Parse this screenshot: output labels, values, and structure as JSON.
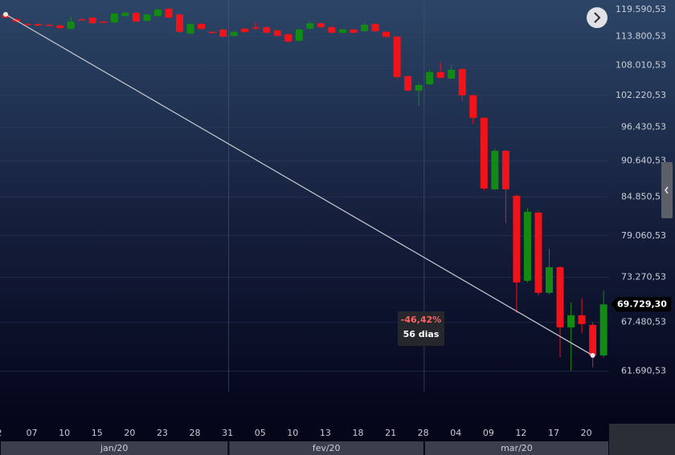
{
  "chart_data": {
    "type": "candlestick",
    "log_scale": true,
    "grid": true,
    "up_color": "#138a13",
    "down_color": "#f0131a",
    "categories": [
      "2",
      null,
      null,
      "07",
      null,
      null,
      "10",
      null,
      null,
      "15",
      null,
      null,
      "20",
      null,
      null,
      "23",
      null,
      null,
      "28",
      null,
      null,
      "31",
      null,
      null,
      "05",
      null,
      null,
      "10",
      null,
      null,
      "13",
      null,
      null,
      "18",
      null,
      null,
      "21",
      null,
      null,
      "28",
      null,
      null,
      "04",
      null,
      null,
      "09",
      null,
      null,
      "12",
      null,
      null,
      "17",
      null,
      null,
      "20",
      null
    ],
    "open": [
      118540,
      117500,
      116480,
      116480,
      116310,
      116140,
      115460,
      117500,
      117850,
      116990,
      116820,
      118190,
      118890,
      117160,
      118190,
      119766,
      118540,
      114460,
      116480,
      114800,
      115300,
      113970,
      115460,
      115800,
      115800,
      115130,
      114300,
      112970,
      115460,
      116650,
      115800,
      114630,
      115300,
      114960,
      116480,
      114800,
      113800,
      105870,
      103110,
      104320,
      106650,
      105410,
      107270,
      102220,
      98090,
      86070,
      92360,
      85060,
      72810,
      82480,
      71220,
      74640,
      66860,
      68350,
      67160,
      63510
    ],
    "high": [
      118700,
      117700,
      116700,
      116650,
      116480,
      116310,
      118020,
      117680,
      118020,
      117160,
      118890,
      119070,
      119070,
      118716,
      119766,
      119940,
      118716,
      116650,
      116650,
      114970,
      115460,
      114970,
      115630,
      116820,
      115970,
      115300,
      114460,
      115460,
      117160,
      116820,
      115970,
      115460,
      115460,
      116820,
      116650,
      114970,
      113970,
      106040,
      104560,
      107120,
      108540,
      108010,
      107420,
      102380,
      98250,
      92700,
      92530,
      85230,
      83200,
      82650,
      77210,
      74810,
      69970,
      70490,
      67500,
      71530
    ],
    "low": [
      117700,
      116800,
      116300,
      115950,
      116140,
      115460,
      115300,
      117330,
      116480,
      116820,
      116650,
      118020,
      116820,
      116990,
      118020,
      117680,
      114630,
      114300,
      115300,
      114630,
      113640,
      113800,
      114630,
      115130,
      114460,
      113800,
      112630,
      112800,
      115300,
      115630,
      114460,
      114460,
      114460,
      114800,
      114800,
      113640,
      105410,
      102940,
      100260,
      104170,
      105410,
      105260,
      101180,
      97000,
      85900,
      85900,
      80930,
      68640,
      72600,
      70900,
      71000,
      63320,
      61770,
      66170,
      62130,
      63300
    ],
    "close": [
      117850,
      116990,
      116450,
      116140,
      116300,
      115630,
      116990,
      117480,
      116650,
      116970,
      118716,
      118890,
      116990,
      118540,
      119590,
      117850,
      114800,
      116480,
      115460,
      114780,
      113800,
      114800,
      114800,
      115780,
      114630,
      113970,
      112800,
      115300,
      116650,
      115800,
      114630,
      115300,
      114630,
      116310,
      114960,
      113800,
      105720,
      103110,
      104170,
      106650,
      105570,
      107120,
      102220,
      98090,
      86190,
      92360,
      86070,
      72590,
      82600,
      71220,
      74640,
      66860,
      68350,
      67260,
      63510,
      69729.3
    ],
    "ylim": [
      56300,
      121700
    ],
    "yticks": [
      {
        "value": 119590.53,
        "label": "119.590,53"
      },
      {
        "value": 113800.53,
        "label": "113.800,53"
      },
      {
        "value": 108010.53,
        "label": "108.010,53"
      },
      {
        "value": 102220.53,
        "label": "102.220,53"
      },
      {
        "value": 96430.53,
        "label": "96.430,53"
      },
      {
        "value": 90640.53,
        "label": "90.640,53"
      },
      {
        "value": 84850.53,
        "label": "84.850,53"
      },
      {
        "value": 79060.53,
        "label": "79.060,53"
      },
      {
        "value": 73270.53,
        "label": "73.270,53"
      },
      {
        "value": 67480.53,
        "label": "67.480,53"
      },
      {
        "value": 61690.53,
        "label": "61.690,53"
      }
    ],
    "last_price": {
      "value": 69729.3,
      "label": "69.729,30"
    },
    "months": [
      {
        "label": "jan/20",
        "start": 0
      },
      {
        "label": "fev/20",
        "start": 21
      },
      {
        "label": "mar/20",
        "start": 39
      }
    ],
    "measure": {
      "start": {
        "index": 0,
        "value": 118540
      },
      "end": {
        "index": 54,
        "value": 63510
      },
      "change_label": "-46,42%",
      "duration_label": "56 dias"
    }
  }
}
